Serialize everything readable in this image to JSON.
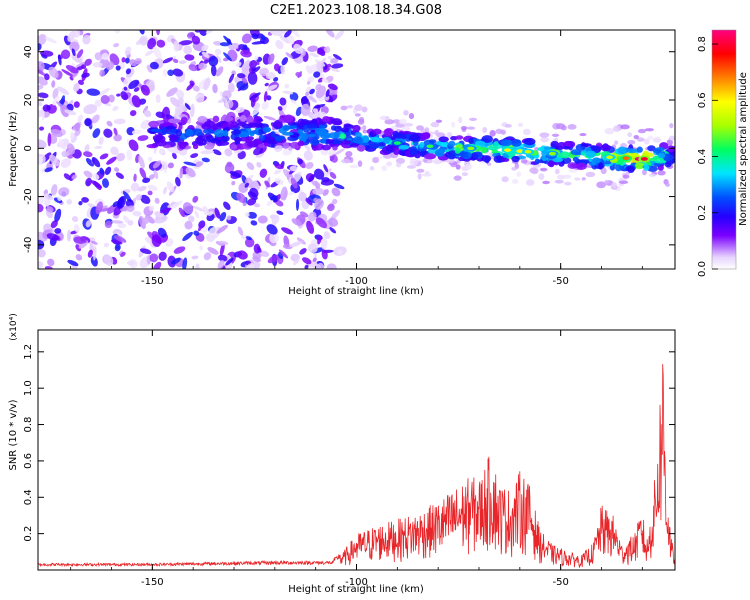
{
  "title": "C2E1.2023.108.18.34.G08",
  "chart_data": [
    {
      "type": "heatmap",
      "xlabel": "Height of straight line (km)",
      "ylabel": "Frequency (Hz)",
      "xlim": [
        -178,
        -22
      ],
      "ylim": [
        -50,
        49
      ],
      "xticks": [
        -150,
        -100,
        -50
      ],
      "yticks": [
        -40,
        -20,
        0,
        20,
        40
      ],
      "ridge": {
        "description_points_x": [
          -140,
          -120,
          -105,
          -95,
          -80,
          -65,
          -50,
          -40,
          -30,
          -22
        ],
        "frequency_hz": [
          6,
          7,
          6,
          3,
          0.5,
          -0.5,
          -2.5,
          -3.5,
          -4.5,
          -3
        ],
        "peak_amplitude": [
          0.3,
          0.35,
          0.45,
          0.4,
          0.45,
          0.6,
          0.5,
          0.55,
          0.85,
          0.3
        ]
      },
      "noise_region_x": [
        -178,
        -104
      ],
      "colorbar": {
        "label": "Normalized spectral amplitude",
        "range": [
          0.0,
          0.85
        ],
        "ticks": [
          "0.0",
          "0.2",
          "0.4",
          "0.6",
          "0.8"
        ],
        "colormap": [
          "#ffffff",
          "#e6d2ff",
          "#7b00ff",
          "#2400ff",
          "#0050ff",
          "#00e5ff",
          "#00ff60",
          "#a8ff00",
          "#ffff00",
          "#ff8000",
          "#ff0000",
          "#ff0080"
        ]
      },
      "grid": false
    },
    {
      "type": "line",
      "xlabel": "Height of straight line (km)",
      "ylabel": "SNR (10 * v/v)",
      "scale_label": "(x10⁴)",
      "xlim": [
        -178,
        -22
      ],
      "ylim": [
        0,
        1.32
      ],
      "xticks": [
        -150,
        -100,
        -50
      ],
      "yticks": [
        "0.2",
        "0.4",
        "0.6",
        "0.8",
        "1.0",
        "1.2"
      ],
      "color": "#e8262a",
      "envelope": {
        "x": [
          -178,
          -150,
          -120,
          -106,
          -104,
          -100,
          -95,
          -90,
          -85,
          -80,
          -76,
          -72,
          -70,
          -67,
          -65,
          -62,
          -60,
          -58,
          -55,
          -52,
          -48,
          -45,
          -42,
          -40,
          -37,
          -35,
          -32,
          -30,
          -29,
          -28,
          -27,
          -26,
          -25,
          -24,
          -23,
          -22
        ],
        "y": [
          0.03,
          0.03,
          0.04,
          0.04,
          0.08,
          0.2,
          0.25,
          0.28,
          0.32,
          0.38,
          0.45,
          0.52,
          0.5,
          0.66,
          0.48,
          0.44,
          0.55,
          0.5,
          0.22,
          0.14,
          0.1,
          0.08,
          0.15,
          0.36,
          0.3,
          0.14,
          0.2,
          0.34,
          0.15,
          0.3,
          0.5,
          0.84,
          1.3,
          0.5,
          0.2,
          0.05
        ]
      }
    }
  ]
}
